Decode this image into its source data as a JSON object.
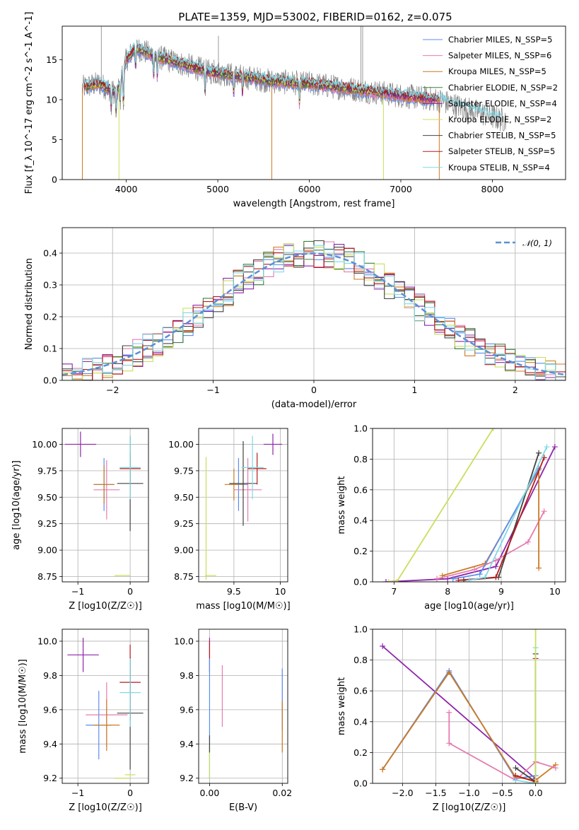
{
  "figure_title": "PLATE=1359, MJD=53002, FIBERID=0162, z=0.075",
  "colors": {
    "chabrier_miles": "#5b8def",
    "salpeter_miles": "#e57bb0",
    "kroupa_miles": "#cc7a22",
    "chabrier_elodie": "#3e7d3e",
    "salpeter_elodie": "#8e24aa",
    "kroupa_elodie": "#c6e05c",
    "chabrier_stelib": "#444444",
    "salpeter_stelib": "#b71c1c",
    "kroupa_stelib": "#7fd9e6",
    "data": "#808080",
    "gaussian": "#5b8fd6"
  },
  "chart_data": [
    {
      "id": "spectrum",
      "type": "line",
      "xlabel": "wavelength [Angstrom, rest frame]",
      "ylabel": "Flux [f_λ 10^-17 erg cm^-2 s^-1 A^-1]",
      "xlim": [
        3300,
        8800
      ],
      "ylim": [
        0,
        19.2
      ],
      "xticks": [
        4000,
        5000,
        6000,
        7000,
        8000
      ],
      "yticks": [
        0,
        5,
        10,
        15
      ],
      "grid": false,
      "legend_position": "right",
      "legend": [
        {
          "text": "Chabrier MILES, N_SSP=5",
          "color_key": "chabrier_miles"
        },
        {
          "text": "Salpeter MILES, N_SSP=6",
          "color_key": "salpeter_miles"
        },
        {
          "text": "Kroupa MILES, N_SSP=5",
          "color_key": "kroupa_miles"
        },
        {
          "text": "Chabrier ELODIE, N_SSP=2",
          "color_key": "chabrier_elodie"
        },
        {
          "text": "Salpeter ELODIE, N_SSP=4",
          "color_key": "salpeter_elodie"
        },
        {
          "text": "Kroupa ELODIE, N_SSP=2",
          "color_key": "kroupa_elodie"
        },
        {
          "text": "Chabrier STELIB, N_SSP=5",
          "color_key": "chabrier_stelib"
        },
        {
          "text": "Salpeter STELIB, N_SSP=5",
          "color_key": "salpeter_stelib"
        },
        {
          "text": "Kroupa STELIB, N_SSP=4",
          "color_key": "kroupa_stelib"
        }
      ],
      "continuum_shape": {
        "wavelength": [
          3520,
          3700,
          3900,
          4000,
          4100,
          4300,
          4600,
          4900,
          5200,
          5600,
          6000,
          6500,
          7000,
          7400
        ],
        "flux": [
          11.5,
          12.0,
          10.8,
          15.0,
          16.5,
          15.5,
          14.5,
          13.5,
          13.0,
          12.3,
          12.0,
          11.3,
          10.5,
          10.0
        ],
        "model_end_wavelength": 8100,
        "model_end_flux": 7.5
      }
    },
    {
      "id": "residual_histogram",
      "type": "histogram",
      "xlabel": "(data-model)/error",
      "ylabel": "Normed distribution",
      "xlim": [
        -2.5,
        2.5
      ],
      "ylim": [
        0,
        0.48
      ],
      "xticks": [
        -2,
        -1,
        0,
        1,
        2
      ],
      "yticks": [
        0.0,
        0.1,
        0.2,
        0.3,
        0.4
      ],
      "grid": true,
      "legend_position": "top-right",
      "legend": [
        {
          "text": "𝒩(0, 1)",
          "style": "dashed",
          "color_key": "gaussian"
        }
      ],
      "bin_width": 0.1,
      "reference_curve": "standard normal density"
    },
    {
      "id": "age_vs_Z",
      "type": "errorbar",
      "xlabel": "Z [log10(Z/Z☉)]",
      "ylabel": "age [log10(age/yr)]",
      "xlim": [
        -1.3,
        0.35
      ],
      "ylim": [
        8.7,
        10.15
      ],
      "xticks": [
        -1,
        0
      ],
      "yticks": [
        8.75,
        9.0,
        9.25,
        9.5,
        9.75,
        10.0
      ],
      "grid": true,
      "points": [
        {
          "series": "salpeter_elodie",
          "x": -0.95,
          "xerr": 0.3,
          "y": 10.0,
          "yerr": 0.12
        },
        {
          "series": "chabrier_miles",
          "x": -0.5,
          "xerr": 0.2,
          "y": 9.62,
          "yerr": 0.25
        },
        {
          "series": "salpeter_miles",
          "x": -0.45,
          "xerr": 0.25,
          "y": 9.57,
          "yerr": 0.28
        },
        {
          "series": "kroupa_miles",
          "x": -0.5,
          "xerr": 0.2,
          "y": 9.62,
          "yerr": 0.18
        },
        {
          "series": "chabrier_stelib",
          "x": 0.0,
          "xerr": 0.25,
          "y": 9.63,
          "yerr": 0.45
        },
        {
          "series": "salpeter_stelib",
          "x": 0.0,
          "xerr": 0.2,
          "y": 9.77,
          "yerr": 0.15
        },
        {
          "series": "kroupa_stelib",
          "x": 0.0,
          "xerr": 0.2,
          "y": 9.78,
          "yerr": 0.3
        },
        {
          "series": "kroupa_elodie",
          "x": -0.15,
          "xerr": 0.15,
          "y": 8.76,
          "yerr": 0.0
        }
      ]
    },
    {
      "id": "age_vs_mass",
      "type": "errorbar",
      "xlabel": "mass [log10(M/M☉)]",
      "ylabel": "",
      "xlim": [
        9.12,
        10.08
      ],
      "ylim": [
        8.7,
        10.15
      ],
      "xticks": [
        9.5,
        10.0
      ],
      "yticks": [
        8.75,
        9.0,
        9.25,
        9.5,
        9.75,
        10.0
      ],
      "grid": true,
      "points": [
        {
          "series": "salpeter_elodie",
          "x": 9.92,
          "xerr": 0.1,
          "y": 10.0,
          "yerr": 0.1
        },
        {
          "series": "chabrier_miles",
          "x": 9.55,
          "xerr": 0.1,
          "y": 9.62,
          "yerr": 0.25
        },
        {
          "series": "salpeter_miles",
          "x": 9.65,
          "xerr": 0.15,
          "y": 9.57,
          "yerr": 0.3
        },
        {
          "series": "kroupa_miles",
          "x": 9.5,
          "xerr": 0.1,
          "y": 9.62,
          "yerr": 0.15
        },
        {
          "series": "chabrier_stelib",
          "x": 9.6,
          "xerr": 0.15,
          "y": 9.63,
          "yerr": 0.4
        },
        {
          "series": "salpeter_stelib",
          "x": 9.75,
          "xerr": 0.1,
          "y": 9.77,
          "yerr": 0.15
        },
        {
          "series": "kroupa_stelib",
          "x": 9.7,
          "xerr": 0.12,
          "y": 9.78,
          "yerr": 0.3
        },
        {
          "series": "kroupa_elodie",
          "x": 9.2,
          "xerr": 0.0,
          "y": 9.3,
          "yerr": 0.58
        },
        {
          "series": "kroupa_elodie",
          "x": 9.25,
          "xerr": 0.06,
          "y": 8.76,
          "yerr": 0.0
        }
      ]
    },
    {
      "id": "massweight_vs_age",
      "type": "line",
      "xlabel": "age [log10(age/yr)]",
      "ylabel": "mass weight",
      "xlim": [
        6.6,
        10.2
      ],
      "ylim": [
        0.0,
        1.0
      ],
      "xticks": [
        7,
        8,
        9,
        10
      ],
      "yticks": [
        0.0,
        0.2,
        0.4,
        0.6,
        0.8,
        1.0
      ],
      "grid": true,
      "series": [
        {
          "name": "salpeter_elodie",
          "x": [
            6.85,
            8.0,
            8.9,
            10.0
          ],
          "y": [
            0.0,
            0.02,
            0.1,
            0.88
          ]
        },
        {
          "name": "salpeter_miles",
          "x": [
            7.8,
            8.5,
            8.9,
            9.5,
            9.8
          ],
          "y": [
            0.02,
            0.08,
            0.14,
            0.26,
            0.46
          ]
        },
        {
          "name": "kroupa_miles",
          "x": [
            7.9,
            8.7,
            9.7,
            9.7
          ],
          "y": [
            0.04,
            0.12,
            0.73,
            0.09
          ]
        },
        {
          "name": "chabrier_miles",
          "x": [
            8.1,
            8.6,
            9.7
          ],
          "y": [
            0.02,
            0.05,
            0.74
          ]
        },
        {
          "name": "chabrier_stelib",
          "x": [
            8.3,
            8.95,
            9.7
          ],
          "y": [
            0.01,
            0.03,
            0.84
          ]
        },
        {
          "name": "salpeter_stelib",
          "x": [
            8.2,
            8.9,
            9.8
          ],
          "y": [
            0.01,
            0.03,
            0.81
          ]
        },
        {
          "name": "kroupa_stelib",
          "x": [
            8.4,
            8.7,
            9.85
          ],
          "y": [
            0.01,
            0.03,
            0.88
          ]
        },
        {
          "name": "kroupa_elodie",
          "x": [
            6.9,
            7.0,
            7.05,
            8.85
          ],
          "y": [
            0.0,
            0.0,
            0.0,
            1.0
          ]
        }
      ]
    },
    {
      "id": "mass_vs_Z",
      "type": "errorbar",
      "xlabel": "Z [log10(Z/Z☉)]",
      "ylabel": "mass [log10(M/M☉)]",
      "xlim": [
        -1.3,
        0.35
      ],
      "ylim": [
        9.17,
        10.07
      ],
      "xticks": [
        -1,
        0
      ],
      "yticks": [
        9.2,
        9.4,
        9.6,
        9.8,
        10.0
      ],
      "grid": true,
      "points": [
        {
          "series": "salpeter_elodie",
          "x": -0.9,
          "xerr": 0.3,
          "y": 9.92,
          "yerr": 0.1
        },
        {
          "series": "chabrier_miles",
          "x": -0.6,
          "xerr": 0.25,
          "y": 9.51,
          "yerr": 0.2
        },
        {
          "series": "salpeter_miles",
          "x": -0.45,
          "xerr": 0.4,
          "y": 9.57,
          "yerr": 0.19
        },
        {
          "series": "kroupa_miles",
          "x": -0.45,
          "xerr": 0.25,
          "y": 9.51,
          "yerr": 0.15
        },
        {
          "series": "chabrier_stelib",
          "x": 0.0,
          "xerr": 0.25,
          "y": 9.58,
          "yerr": 0.33
        },
        {
          "series": "salpeter_stelib",
          "x": 0.0,
          "xerr": 0.2,
          "y": 9.76,
          "yerr": 0.22
        },
        {
          "series": "kroupa_stelib",
          "x": 0.0,
          "xerr": 0.2,
          "y": 9.7,
          "yerr": 0.2
        },
        {
          "series": "kroupa_elodie",
          "x": -0.15,
          "xerr": 0.15,
          "y": 9.2,
          "yerr": 0.0
        },
        {
          "series": "kroupa_elodie",
          "x": 0.0,
          "xerr": 0.1,
          "y": 9.22,
          "yerr": 0.0
        }
      ]
    },
    {
      "id": "mass_vs_EBV",
      "type": "errorbar",
      "xlabel": "E(B-V)",
      "ylabel": "",
      "xlim": [
        -0.003,
        0.0215
      ],
      "ylim": [
        9.17,
        10.07
      ],
      "xticks": [
        0.0,
        0.02
      ],
      "tick_labels": [
        "0.00",
        "0.02"
      ],
      "yticks": [
        9.2,
        9.4,
        9.6,
        9.8,
        10.0
      ],
      "grid": true,
      "points": [
        {
          "series": "salpeter_elodie",
          "x": 0.0,
          "xerr": 0.0,
          "y": 9.92,
          "yerr": 0.1
        },
        {
          "series": "chabrier_miles",
          "x": 0.0,
          "xerr": 0.0,
          "y": 9.55,
          "yerr": 0.35
        },
        {
          "series": "salpeter_miles",
          "x": 0.0035,
          "xerr": 0.0,
          "y": 9.68,
          "yerr": 0.18
        },
        {
          "series": "chabrier_miles",
          "x": 0.02,
          "xerr": 0.0,
          "y": 9.66,
          "yerr": 0.18
        },
        {
          "series": "kroupa_miles",
          "x": 0.02,
          "xerr": 0.0,
          "y": 9.5,
          "yerr": 0.15
        },
        {
          "series": "salpeter_stelib",
          "x": 0.0,
          "xerr": 0.0,
          "y": 9.95,
          "yerr": 0.05
        },
        {
          "series": "kroupa_elodie",
          "x": 0.0,
          "xerr": 0.0,
          "y": 9.3,
          "yerr": 0.1
        },
        {
          "series": "chabrier_stelib",
          "x": 0.0,
          "xerr": 0.0,
          "y": 9.4,
          "yerr": 0.05
        }
      ]
    },
    {
      "id": "massweight_vs_Z",
      "type": "line",
      "xlabel": "Z [log10(Z/Z☉)]",
      "ylabel": "mass weight",
      "xlim": [
        -2.45,
        0.45
      ],
      "ylim": [
        0.0,
        1.0
      ],
      "xticks": [
        -2.0,
        -1.5,
        -1.0,
        -0.5,
        0.0
      ],
      "tick_labels": [
        "−2.0",
        "−1.5",
        "−1.0",
        "−0.5",
        "0.0"
      ],
      "yticks": [
        0.0,
        0.2,
        0.4,
        0.6,
        0.8,
        1.0
      ],
      "grid": true,
      "series": [
        {
          "name": "salpeter_elodie",
          "x": [
            -2.3,
            0.0
          ],
          "y": [
            0.89,
            0.03
          ]
        },
        {
          "name": "chabrier_miles",
          "x": [
            -2.3,
            -1.3,
            -0.3,
            0.0
          ],
          "y": [
            0.09,
            0.73,
            0.03,
            0.05
          ]
        },
        {
          "name": "kroupa_miles",
          "x": [
            -2.3,
            -1.3,
            -0.3,
            0.0,
            0.3
          ],
          "y": [
            0.09,
            0.72,
            0.04,
            0.02,
            0.12
          ]
        },
        {
          "name": "salpeter_miles",
          "x": [
            -1.3,
            -1.3,
            -0.3,
            0.0,
            0.3
          ],
          "y": [
            0.46,
            0.26,
            0.02,
            0.14,
            0.1
          ]
        },
        {
          "name": "chabrier_stelib",
          "x": [
            -0.3,
            0.0,
            0.0
          ],
          "y": [
            0.1,
            0.01,
            0.84
          ]
        },
        {
          "name": "salpeter_stelib",
          "x": [
            -0.3,
            0.0,
            0.0
          ],
          "y": [
            0.05,
            0.01,
            0.81
          ]
        },
        {
          "name": "kroupa_stelib",
          "x": [
            -0.3,
            0.0,
            0.0
          ],
          "y": [
            0.02,
            0.0,
            0.88
          ]
        },
        {
          "name": "kroupa_elodie",
          "x": [
            0.0,
            0.0
          ],
          "y": [
            0.0,
            1.0
          ]
        }
      ]
    }
  ]
}
